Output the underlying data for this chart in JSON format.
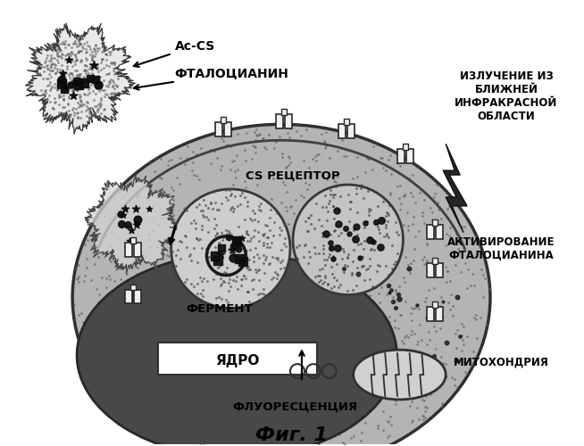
{
  "background_color": "#ffffff",
  "cell_color": "#b8b8b8",
  "nucleus_color": "#505050",
  "labels": {
    "ac_cs": "Ac-CS",
    "phthalocyanine": "ФТАЛОЦИАНИН",
    "cs_receptor": "CS РЕЦЕПТОР",
    "enzyme": "ФЕРМЕНТ",
    "nucleus": "ЯДРО",
    "radiation": "ИЗЛУЧЕНИЕ ИЗ\nБЛИЖНЕЙ\nИНФРАКРАСНОЙ\nОБЛАСТИ",
    "activation": "АКТИВИРОВАНИЕ\nФТАЛОЦИАНИНА",
    "fluorescence": "ФЛУОРЕСЦЕНЦИЯ",
    "mitochondria": "МИТОХОНДРИЯ"
  },
  "fig_label": "Фиг. 1"
}
